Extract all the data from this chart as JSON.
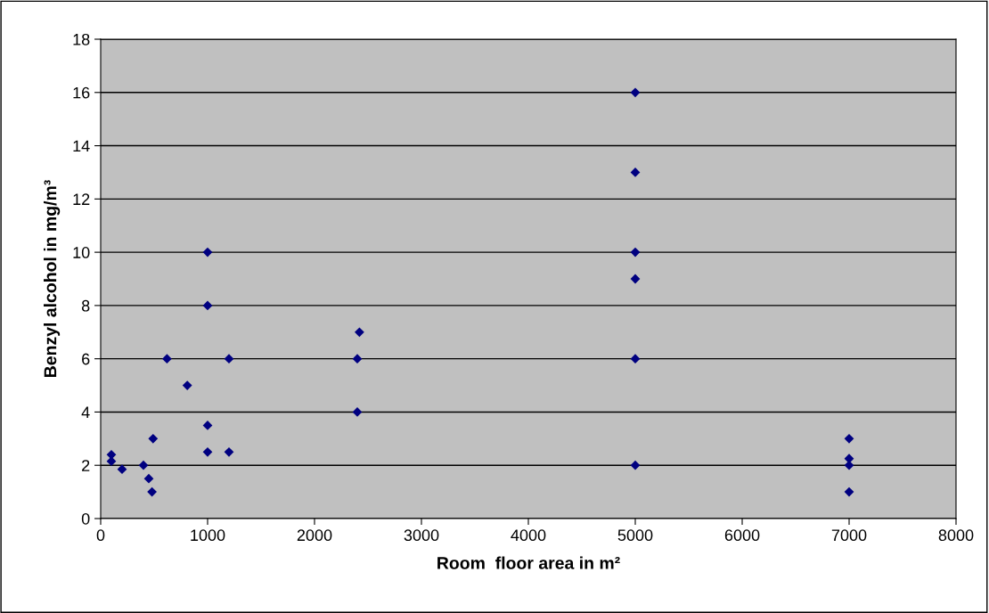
{
  "chart_data": {
    "type": "scatter",
    "xlabel": "Room  floor area in m²",
    "ylabel": "Benzyl alcohol in mg/m³",
    "x": [
      100,
      100,
      200,
      400,
      450,
      480,
      490,
      620,
      810,
      1000,
      1000,
      1000,
      1000,
      1200,
      1200,
      2400,
      2400,
      2420,
      5000,
      5000,
      5000,
      5000,
      5000,
      5000,
      7000,
      7000,
      7000,
      7000
    ],
    "values": [
      2.4,
      2.15,
      1.85,
      2,
      1.5,
      1,
      3,
      6,
      5,
      10,
      8,
      3.5,
      2.5,
      6,
      2.5,
      4,
      6,
      7,
      16,
      13,
      10,
      9,
      6,
      2,
      3,
      2.25,
      2,
      1
    ],
    "color": "#000080",
    "marker": "diamond",
    "grid": "y",
    "xlim": [
      0,
      8000
    ],
    "xticks": [
      0,
      1000,
      2000,
      3000,
      4000,
      5000,
      6000,
      7000,
      8000
    ],
    "ylim": [
      0,
      18
    ],
    "yticks": [
      0,
      2,
      4,
      6,
      8,
      10,
      12,
      14,
      16,
      18
    ]
  }
}
